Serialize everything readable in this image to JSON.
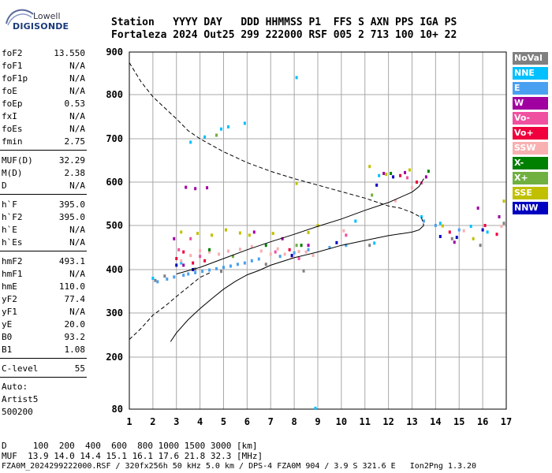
{
  "logo": {
    "top": "Lowell",
    "bottom": "DIGISONDE"
  },
  "header": {
    "labels": "Station   YYYY DAY   DDD HHMMSS P1  FFS S AXN PPS IGA PS",
    "values": "Fortaleza 2024 Out25 299 222000 RSF 005 2 713 100 10+ 22"
  },
  "params": [
    {
      "label": "foF2",
      "value": "13.550"
    },
    {
      "label": "foF1",
      "value": "N/A"
    },
    {
      "label": "foF1p",
      "value": "N/A"
    },
    {
      "label": "foE",
      "value": "N/A"
    },
    {
      "label": "foEp",
      "value": "0.53"
    },
    {
      "label": "fxI",
      "value": "N/A"
    },
    {
      "label": "foEs",
      "value": "N/A"
    },
    {
      "label": "fmin",
      "value": "2.75"
    },
    {
      "label": "MUF(D)",
      "value": "32.29"
    },
    {
      "label": "M(D)",
      "value": "2.38"
    },
    {
      "label": "D",
      "value": "N/A"
    },
    {
      "label": "h`F",
      "value": "395.0"
    },
    {
      "label": "h`F2",
      "value": "395.0"
    },
    {
      "label": "h`E",
      "value": "N/A"
    },
    {
      "label": "h`Es",
      "value": "N/A"
    },
    {
      "label": "hmF2",
      "value": "493.1"
    },
    {
      "label": "hmF1",
      "value": "N/A"
    },
    {
      "label": "hmE",
      "value": "110.0"
    },
    {
      "label": "yF2",
      "value": "77.4"
    },
    {
      "label": "yF1",
      "value": "N/A"
    },
    {
      "label": "yE",
      "value": "20.0"
    },
    {
      "label": "B0",
      "value": "93.2"
    },
    {
      "label": "B1",
      "value": "1.08"
    },
    {
      "label": "C-level",
      "value": "55"
    }
  ],
  "notes": [
    "Auto:",
    "Artist5",
    "500200"
  ],
  "legend": [
    {
      "label": "NoVal",
      "color": "#808080"
    },
    {
      "label": "NNE",
      "color": "#00c0ff"
    },
    {
      "label": "E",
      "color": "#4aa0f0"
    },
    {
      "label": "W",
      "color": "#a000a0"
    },
    {
      "label": "Vo-",
      "color": "#f050a0"
    },
    {
      "label": "Vo+",
      "color": "#f0003c"
    },
    {
      "label": "SSW",
      "color": "#f8b0b0"
    },
    {
      "label": "X-",
      "color": "#008000"
    },
    {
      "label": "X+",
      "color": "#70b040"
    },
    {
      "label": "SSE",
      "color": "#c0c000"
    },
    {
      "label": "NNW",
      "color": "#0000c0"
    }
  ],
  "footer": {
    "distance": "D     100  200  400  600  800 1000 1500 3000 [km]",
    "muf": "MUF  13.9 14.0 14.4 15.1 16.1 17.6 21.8 32.3 [MHz]",
    "file": "FZA0M_2024299222000.RSF / 320fx256h 50 kHz 5.0 km / DPS-4 FZA0M 904 / 3.9 S 321.6 E   Ion2Png 1.3.20"
  },
  "chart_data": {
    "type": "scatter",
    "x_ticks": [
      1,
      2,
      3,
      4,
      5,
      6,
      7,
      8,
      9,
      10,
      11,
      12,
      13,
      14,
      15,
      16,
      17
    ],
    "y_ticks": [
      80,
      200,
      300,
      400,
      500,
      600,
      700,
      800,
      900
    ],
    "xlim": [
      1,
      17
    ],
    "ylim": [
      80,
      900
    ],
    "grid": true,
    "legend_position": "right",
    "lines": [
      {
        "style": "solid",
        "points": [
          [
            3.0,
            390
          ],
          [
            4.0,
            405
          ],
          [
            5.0,
            425
          ],
          [
            6.0,
            445
          ],
          [
            7.0,
            463
          ],
          [
            8.0,
            480
          ],
          [
            9.0,
            498
          ],
          [
            10.0,
            515
          ],
          [
            11.0,
            535
          ],
          [
            12.0,
            553
          ],
          [
            12.5,
            565
          ],
          [
            13.0,
            577
          ],
          [
            13.3,
            590
          ],
          [
            13.5,
            608
          ]
        ]
      },
      {
        "style": "solid",
        "points": [
          [
            2.75,
            235
          ],
          [
            3.0,
            255
          ],
          [
            3.5,
            285
          ],
          [
            4.0,
            310
          ],
          [
            4.5,
            333
          ],
          [
            5.0,
            355
          ],
          [
            5.5,
            373
          ],
          [
            6.0,
            388
          ],
          [
            6.5,
            398
          ],
          [
            7.0,
            410
          ],
          [
            8.0,
            427
          ],
          [
            9.0,
            440
          ],
          [
            10.0,
            455
          ],
          [
            11.0,
            466
          ],
          [
            12.0,
            477
          ],
          [
            13.0,
            485
          ],
          [
            13.3,
            490
          ],
          [
            13.5,
            500
          ]
        ]
      },
      {
        "style": "dashed",
        "points": [
          [
            1.0,
            875
          ],
          [
            1.5,
            830
          ],
          [
            2.0,
            795
          ],
          [
            2.5,
            770
          ],
          [
            3.0,
            745
          ],
          [
            3.5,
            718
          ],
          [
            4.0,
            700
          ],
          [
            4.5,
            685
          ],
          [
            5.0,
            670
          ],
          [
            6.0,
            645
          ],
          [
            7.0,
            625
          ],
          [
            8.0,
            608
          ],
          [
            9.0,
            593
          ],
          [
            10.0,
            578
          ],
          [
            11.0,
            563
          ],
          [
            12.0,
            545
          ],
          [
            12.5,
            540
          ],
          [
            13.0,
            530
          ],
          [
            13.4,
            518
          ],
          [
            13.5,
            500
          ]
        ]
      },
      {
        "style": "dashed",
        "points": [
          [
            1.0,
            240
          ],
          [
            1.5,
            265
          ],
          [
            2.0,
            295
          ],
          [
            2.5,
            315
          ],
          [
            3.0,
            338
          ],
          [
            3.5,
            360
          ],
          [
            4.0,
            382
          ],
          [
            4.5,
            395
          ]
        ]
      }
    ],
    "series": [
      {
        "name": "NoVal",
        "color": "#808080",
        "points": [
          [
            2.1,
            375
          ],
          [
            2.5,
            385
          ],
          [
            3.8,
            401
          ],
          [
            4.9,
            396
          ],
          [
            6.8,
            412
          ],
          [
            8.4,
            397
          ],
          [
            11.2,
            455
          ],
          [
            14.7,
            470
          ],
          [
            15.9,
            455
          ],
          [
            16.9,
            505
          ]
        ]
      },
      {
        "name": "NNE",
        "color": "#00c0ff",
        "points": [
          [
            2.0,
            380
          ],
          [
            3.2,
            415
          ],
          [
            3.6,
            692
          ],
          [
            4.2,
            704
          ],
          [
            4.9,
            722
          ],
          [
            5.2,
            727
          ],
          [
            5.9,
            735
          ],
          [
            8.1,
            840
          ],
          [
            8.9,
            82
          ],
          [
            10.6,
            510
          ],
          [
            11.4,
            460
          ],
          [
            11.6,
            615
          ],
          [
            13.4,
            520
          ],
          [
            14.2,
            505
          ],
          [
            15.5,
            498
          ],
          [
            16.2,
            485
          ]
        ]
      },
      {
        "name": "E",
        "color": "#4aa0f0",
        "points": [
          [
            2.2,
            372
          ],
          [
            2.6,
            378
          ],
          [
            2.9,
            383
          ],
          [
            3.3,
            387
          ],
          [
            3.5,
            390
          ],
          [
            3.8,
            393
          ],
          [
            4.1,
            396
          ],
          [
            4.4,
            399
          ],
          [
            4.7,
            402
          ],
          [
            5.0,
            405
          ],
          [
            5.3,
            408
          ],
          [
            5.6,
            412
          ],
          [
            5.9,
            415
          ],
          [
            6.2,
            420
          ],
          [
            6.5,
            424
          ],
          [
            7.4,
            430
          ],
          [
            8.0,
            438
          ],
          [
            8.6,
            445
          ],
          [
            9.5,
            450
          ],
          [
            10.2,
            455
          ],
          [
            13.5,
            510
          ],
          [
            14.0,
            500
          ],
          [
            15.0,
            490
          ]
        ]
      },
      {
        "name": "W",
        "color": "#a000a0",
        "points": [
          [
            2.9,
            470
          ],
          [
            3.3,
            410
          ],
          [
            3.4,
            588
          ],
          [
            3.8,
            585
          ],
          [
            4.3,
            587
          ],
          [
            6.3,
            485
          ],
          [
            7.5,
            470
          ],
          [
            8.6,
            455
          ],
          [
            11.8,
            620
          ],
          [
            12.7,
            622
          ],
          [
            13.6,
            612
          ],
          [
            14.8,
            462
          ],
          [
            15.8,
            540
          ],
          [
            16.7,
            520
          ]
        ]
      },
      {
        "name": "Vo-",
        "color": "#f050a0",
        "points": [
          [
            3.1,
            445
          ],
          [
            3.6,
            470
          ],
          [
            4.0,
            430
          ],
          [
            7.2,
            440
          ],
          [
            8.2,
            425
          ],
          [
            10.2,
            478
          ],
          [
            12.8,
            610
          ],
          [
            13.4,
            598
          ]
        ]
      },
      {
        "name": "Vo+",
        "color": "#f0003c",
        "points": [
          [
            3.0,
            425
          ],
          [
            3.3,
            440
          ],
          [
            3.7,
            415
          ],
          [
            4.2,
            420
          ],
          [
            7.8,
            445
          ],
          [
            12.5,
            615
          ],
          [
            13.2,
            600
          ],
          [
            14.6,
            485
          ],
          [
            16.1,
            500
          ],
          [
            16.6,
            480
          ]
        ]
      },
      {
        "name": "SSW",
        "color": "#f8b0b0",
        "points": [
          [
            3.2,
            420
          ],
          [
            3.6,
            432
          ],
          [
            4.0,
            443
          ],
          [
            4.4,
            440
          ],
          [
            4.8,
            435
          ],
          [
            5.2,
            442
          ],
          [
            5.7,
            446
          ],
          [
            6.2,
            452
          ],
          [
            6.6,
            442
          ],
          [
            7.0,
            435
          ],
          [
            7.3,
            447
          ],
          [
            7.6,
            435
          ],
          [
            7.9,
            428
          ],
          [
            8.2,
            441
          ],
          [
            8.5,
            440
          ],
          [
            8.8,
            432
          ],
          [
            10.1,
            488
          ],
          [
            12.3,
            557
          ],
          [
            13.0,
            587
          ],
          [
            15.2,
            488
          ],
          [
            16.8,
            498
          ]
        ]
      },
      {
        "name": "X-",
        "color": "#008000",
        "points": [
          [
            4.4,
            445
          ],
          [
            6.8,
            455
          ],
          [
            8.3,
            455
          ],
          [
            12.1,
            620
          ],
          [
            13.7,
            625
          ]
        ]
      },
      {
        "name": "X+",
        "color": "#70b040",
        "points": [
          [
            4.7,
            708
          ],
          [
            5.4,
            430
          ],
          [
            8.1,
            455
          ],
          [
            11.3,
            570
          ]
        ]
      },
      {
        "name": "SSE",
        "color": "#c0c000",
        "points": [
          [
            3.2,
            485
          ],
          [
            3.9,
            482
          ],
          [
            4.5,
            478
          ],
          [
            5.1,
            490
          ],
          [
            5.7,
            483
          ],
          [
            6.1,
            478
          ],
          [
            7.1,
            482
          ],
          [
            8.1,
            597
          ],
          [
            8.6,
            484
          ],
          [
            9.0,
            500
          ],
          [
            11.2,
            636
          ],
          [
            11.9,
            618
          ],
          [
            12.9,
            628
          ],
          [
            14.3,
            499
          ],
          [
            15.6,
            470
          ],
          [
            16.9,
            556
          ]
        ]
      },
      {
        "name": "NNW",
        "color": "#0000c0",
        "points": [
          [
            3.0,
            410
          ],
          [
            3.7,
            400
          ],
          [
            7.9,
            432
          ],
          [
            9.8,
            461
          ],
          [
            11.5,
            593
          ],
          [
            12.2,
            612
          ],
          [
            14.2,
            475
          ],
          [
            14.9,
            473
          ],
          [
            16.0,
            490
          ]
        ]
      }
    ]
  }
}
